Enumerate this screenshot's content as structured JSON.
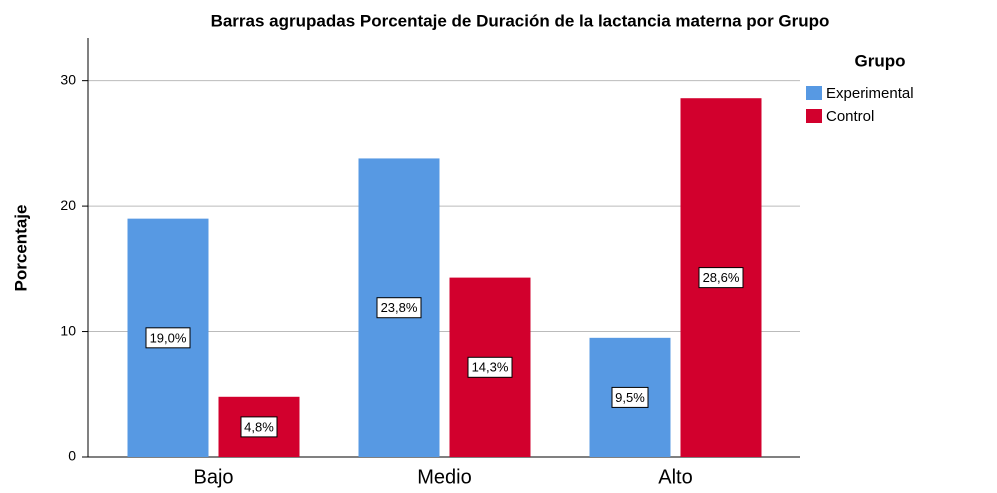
{
  "chart_data": {
    "type": "bar",
    "title": "Barras agrupadas Porcentaje de Duración de la lactancia materna por Grupo",
    "y_label": "Porcentaje",
    "categories": [
      "Bajo",
      "Medio",
      "Alto"
    ],
    "legend_title": "Grupo",
    "series": [
      {
        "name": "Experimental",
        "color": "#5799e3",
        "values": [
          19.0,
          23.8,
          9.5
        ],
        "value_labels": [
          "19,0%",
          "23,8%",
          "9,5%"
        ]
      },
      {
        "name": "Control",
        "color": "#d2002d",
        "values": [
          4.8,
          14.3,
          28.6
        ],
        "value_labels": [
          "4,8%",
          "14,3%",
          "28,6%"
        ]
      }
    ],
    "ylim": [
      0,
      33.4
    ],
    "yticks": [
      0,
      10,
      20,
      30
    ],
    "grid": true,
    "legend": "right"
  }
}
